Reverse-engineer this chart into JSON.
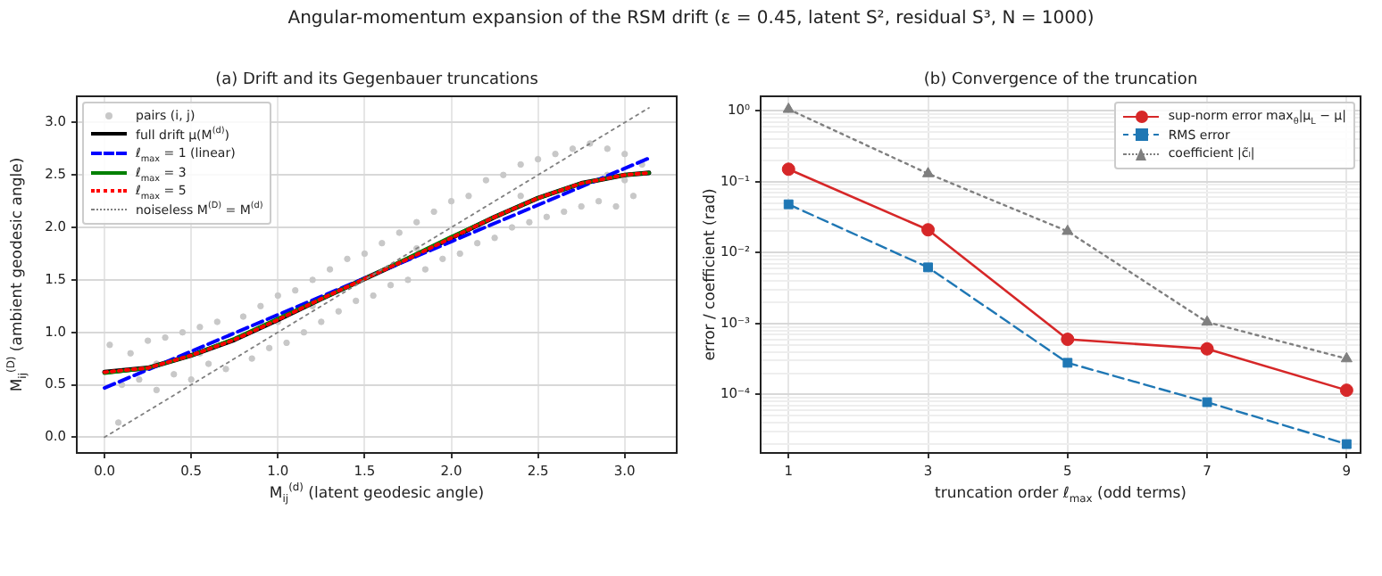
{
  "chart_data": [
    {
      "type": "line",
      "title": "Angular-momentum expansion of the RSM drift (ε = 0.45, latent S², residual S³, N = 1000)",
      "subtitle": "(a) Drift and its Gegenbauer truncations",
      "xlabel": "M$_{ij}$$^{(d)}$ (latent geodesic angle)",
      "ylabel": "M$_{ij}$$^{(D)}$ (ambient geodesic angle)",
      "xlim": [
        -0.16,
        3.3
      ],
      "ylim": [
        -0.15,
        3.25
      ],
      "xticks": [
        {
          "value": 0,
          "label": "0.0"
        },
        0.5,
        {
          "value": 1,
          "label": "1.0"
        },
        1.5,
        {
          "value": 2,
          "label": "2.0"
        },
        2.5,
        {
          "value": 3,
          "label": "3.0"
        }
      ],
      "yticks": [
        {
          "value": 0,
          "label": "0.0"
        },
        0.5,
        {
          "value": 1,
          "label": "1.0"
        },
        1.5,
        {
          "value": 2,
          "label": "2.0"
        },
        2.5,
        {
          "value": 3,
          "label": "3.0"
        }
      ],
      "grid": true,
      "legend": "top left",
      "series": [
        {
          "name": "pairs (i, j)",
          "type": "scatter",
          "marker": "circle",
          "color": "#c8c8c8",
          "x": [
            0.03,
            0.08,
            0.1,
            0.15,
            0.2,
            0.25,
            0.3,
            0.35,
            0.4,
            0.45,
            0.5,
            0.55,
            0.6,
            0.65,
            0.7,
            0.8,
            0.85,
            0.9,
            0.95,
            1.0,
            1.05,
            1.1,
            1.15,
            1.2,
            1.25,
            1.3,
            1.35,
            1.4,
            1.45,
            1.5,
            1.55,
            1.6,
            1.65,
            1.7,
            1.75,
            1.8,
            1.85,
            1.9,
            1.95,
            2.0,
            2.05,
            2.1,
            2.15,
            2.2,
            2.25,
            2.3,
            2.35,
            2.4,
            2.45,
            2.5,
            2.55,
            2.6,
            2.65,
            2.7,
            2.75,
            2.8,
            2.85,
            2.9,
            2.95,
            3.0,
            3.05,
            3.1,
            0.55,
            1.2,
            1.8,
            2.4,
            3.0,
            0.3,
            2.9,
            1.0
          ],
          "values": [
            0.88,
            0.14,
            0.5,
            0.8,
            0.55,
            0.92,
            0.45,
            0.95,
            0.6,
            1.0,
            0.55,
            1.05,
            0.7,
            1.1,
            0.65,
            1.15,
            0.75,
            1.25,
            0.85,
            1.35,
            0.9,
            1.4,
            1.0,
            1.5,
            1.1,
            1.6,
            1.2,
            1.7,
            1.3,
            1.75,
            1.35,
            1.85,
            1.45,
            1.95,
            1.5,
            2.05,
            1.6,
            2.15,
            1.7,
            2.25,
            1.75,
            2.3,
            1.85,
            2.45,
            1.9,
            2.5,
            2.0,
            2.6,
            2.05,
            2.65,
            2.1,
            2.7,
            2.15,
            2.75,
            2.2,
            2.8,
            2.25,
            2.75,
            2.2,
            2.7,
            2.3,
            2.6,
            0.8,
            1.25,
            1.8,
            2.3,
            2.45,
            0.7,
            2.5,
            1.1
          ]
        },
        {
          "name": "full drift μ(M$^{(d)}$)",
          "type": "line",
          "line_style": "solid",
          "color": "#000000",
          "x": [
            0,
            0.25,
            0.5,
            0.75,
            1.0,
            1.25,
            1.5,
            1.75,
            2.0,
            2.25,
            2.5,
            2.75,
            3.0,
            3.14
          ],
          "values": [
            0.62,
            0.66,
            0.78,
            0.93,
            1.12,
            1.32,
            1.51,
            1.7,
            1.9,
            2.1,
            2.28,
            2.42,
            2.5,
            2.52
          ]
        },
        {
          "name": "ℓ$_{max}$ = 1 (linear)",
          "type": "line",
          "line_style": "dashed",
          "color": "#0000ff",
          "x": [
            0,
            3.14
          ],
          "values": [
            0.47,
            2.66
          ]
        },
        {
          "name": "ℓ$_{max}$ = 3",
          "type": "line",
          "line_style": "solid",
          "color": "#008000",
          "x": [
            0,
            0.25,
            0.5,
            0.75,
            1.0,
            1.25,
            1.5,
            1.75,
            2.0,
            2.25,
            2.5,
            2.75,
            3.0,
            3.14
          ],
          "values": [
            0.61,
            0.66,
            0.78,
            0.94,
            1.13,
            1.32,
            1.51,
            1.71,
            1.91,
            2.1,
            2.28,
            2.42,
            2.5,
            2.52
          ]
        },
        {
          "name": "ℓ$_{max}$ = 5",
          "type": "line",
          "line_style": "dotted",
          "color": "#ff0000",
          "x": [
            0,
            0.25,
            0.5,
            0.75,
            1.0,
            1.25,
            1.5,
            1.75,
            2.0,
            2.25,
            2.5,
            2.75,
            3.0,
            3.14
          ],
          "values": [
            0.62,
            0.66,
            0.78,
            0.93,
            1.12,
            1.32,
            1.51,
            1.7,
            1.9,
            2.1,
            2.28,
            2.42,
            2.5,
            2.52
          ]
        },
        {
          "name": "noiseless M$^{(D)}$ = M$^{(d)}$",
          "type": "line",
          "line_style": "dotted",
          "color": "#808080",
          "x": [
            0,
            3.14
          ],
          "values": [
            0,
            3.14
          ]
        }
      ]
    },
    {
      "type": "line",
      "title": "(b) Convergence of the truncation",
      "xlabel": "truncation order ℓ$_{max}$ (odd terms)",
      "ylabel": "error / coefficient (rad)",
      "log": "y",
      "xlim": [
        0.6,
        9.2
      ],
      "ylim": [
        1.5e-05,
        1.6
      ],
      "xticks": [
        1,
        3,
        5,
        7,
        9
      ],
      "yticks": [
        {
          "value": 2e-05,
          "label": null
        },
        {
          "value": 3e-05,
          "label": null
        },
        {
          "value": 4e-05,
          "label": null
        },
        {
          "value": 5e-05,
          "label": null
        },
        {
          "value": 6e-05,
          "label": null
        },
        {
          "value": 7e-05,
          "label": null
        },
        {
          "value": 8e-05,
          "label": null
        },
        {
          "value": 9e-05,
          "label": null
        },
        {
          "value": 0.0001,
          "label": "10⁻⁴"
        },
        {
          "value": 0.0002,
          "label": null
        },
        {
          "value": 0.0003,
          "label": null
        },
        {
          "value": 0.0004,
          "label": null
        },
        {
          "value": 0.0005,
          "label": null
        },
        {
          "value": 0.0006,
          "label": null
        },
        {
          "value": 0.0007,
          "label": null
        },
        {
          "value": 0.0008,
          "label": null
        },
        {
          "value": 0.0009,
          "label": null
        },
        {
          "value": 0.001,
          "label": "10⁻³"
        },
        {
          "value": 0.002,
          "label": null
        },
        {
          "value": 0.003,
          "label": null
        },
        {
          "value": 0.004,
          "label": null
        },
        {
          "value": 0.005,
          "label": null
        },
        {
          "value": 0.006,
          "label": null
        },
        {
          "value": 0.007,
          "label": null
        },
        {
          "value": 0.008,
          "label": null
        },
        {
          "value": 0.009,
          "label": null
        },
        {
          "value": 0.01,
          "label": "10⁻²"
        },
        {
          "value": 0.02,
          "label": null
        },
        {
          "value": 0.03,
          "label": null
        },
        {
          "value": 0.04,
          "label": null
        },
        {
          "value": 0.05,
          "label": null
        },
        {
          "value": 0.06,
          "label": null
        },
        {
          "value": 0.07,
          "label": null
        },
        {
          "value": 0.08,
          "label": null
        },
        {
          "value": 0.09,
          "label": null
        },
        {
          "value": 0.1,
          "label": "10⁻¹"
        },
        {
          "value": 0.2,
          "label": null
        },
        {
          "value": 0.3,
          "label": null
        },
        {
          "value": 0.4,
          "label": null
        },
        {
          "value": 0.5,
          "label": null
        },
        {
          "value": 0.6,
          "label": null
        },
        {
          "value": 0.7,
          "label": null
        },
        {
          "value": 0.8,
          "label": null
        },
        {
          "value": 0.9,
          "label": null
        },
        {
          "value": 1,
          "label": "10⁰"
        }
      ],
      "grid": true,
      "legend": "top right",
      "x": [
        1,
        3,
        5,
        7,
        9
      ],
      "series": [
        {
          "name": "sup-norm error max$_{θ}$|μ$_{L}$ − μ|",
          "marker": "circle",
          "line_style": "solid",
          "color": "#d62728",
          "values": [
            0.15,
            0.021,
            0.0006,
            0.00044,
            0.000115
          ]
        },
        {
          "name": "RMS error",
          "marker": "square",
          "line_style": "dashed",
          "color": "#1f77b4",
          "values": [
            0.048,
            0.0062,
            0.00028,
            7.8e-05,
            2e-05
          ]
        },
        {
          "name": "coefficient |c̃ₗ|",
          "marker": "triangle",
          "line_style": "dotted",
          "color": "#7f7f7f",
          "values": [
            1.05,
            0.13,
            0.02,
            0.00105,
            0.00032
          ]
        }
      ]
    }
  ]
}
